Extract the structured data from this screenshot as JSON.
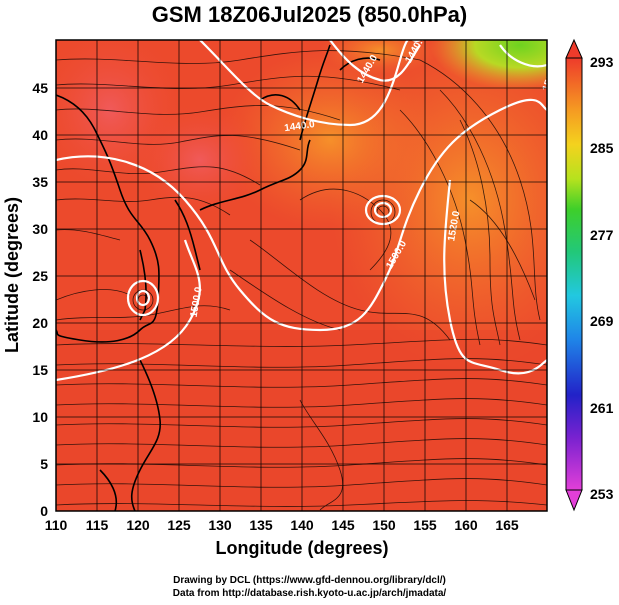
{
  "title": "GSM 18Z06Jul2025 (850.0hPa)",
  "x_axis": {
    "label": "Longitude (degrees)",
    "range": [
      110,
      170
    ],
    "ticks": [
      "110",
      "115",
      "120",
      "125",
      "130",
      "135",
      "140",
      "145",
      "150",
      "155",
      "160",
      "165"
    ]
  },
  "y_axis": {
    "label": "Latitude  (degrees)",
    "range": [
      0,
      50
    ],
    "ticks": [
      "0",
      "5",
      "10",
      "15",
      "20",
      "25",
      "30",
      "35",
      "40",
      "45"
    ]
  },
  "colorbar": {
    "range": [
      253,
      293
    ],
    "ticks": [
      "253",
      "261",
      "269",
      "277",
      "285",
      "293"
    ]
  },
  "contour_labels": [
    "1440.0",
    "1440.0",
    "1440.0",
    "1500.0",
    "1500.0",
    "1500.0",
    "1520.0"
  ],
  "colors": {
    "field_main": "#ee4a2b",
    "field_warm": "#f0603a",
    "field_cool": "#f58a2a",
    "field_green": "#7ed321"
  },
  "credits": {
    "line1": "Drawing by DCL (https://www.gfd-dennou.org/library/dcl/)",
    "line2": "Data from http://database.rish.kyoto-u.ac.jp/arch/jmadata/"
  }
}
